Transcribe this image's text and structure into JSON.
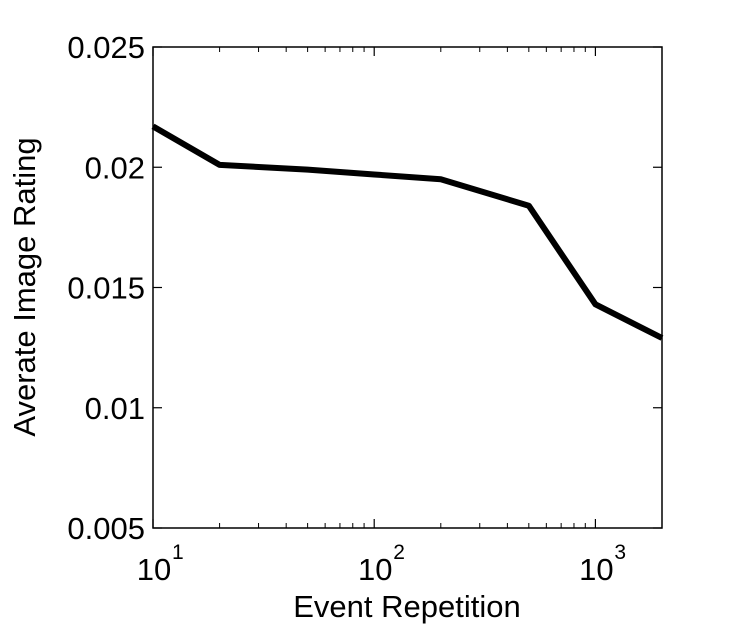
{
  "chart_data": {
    "type": "line",
    "title": "",
    "xlabel": "Event Repetition",
    "ylabel": "Averate Image Rating",
    "x_scale": "log",
    "xlim": [
      10,
      2000
    ],
    "ylim": [
      0.005,
      0.025
    ],
    "grid": false,
    "y_ticks": [
      {
        "value": 0.005,
        "label": "0.005"
      },
      {
        "value": 0.01,
        "label": "0.01"
      },
      {
        "value": 0.015,
        "label": "0.015"
      },
      {
        "value": 0.02,
        "label": "0.02"
      },
      {
        "value": 0.025,
        "label": "0.025"
      }
    ],
    "x_ticks": [
      {
        "value": 10,
        "base": "10",
        "exp": "1"
      },
      {
        "value": 100,
        "base": "10",
        "exp": "2"
      },
      {
        "value": 1000,
        "base": "10",
        "exp": "3"
      }
    ],
    "series": [
      {
        "color": "#000000",
        "x": [
          10,
          20,
          50,
          100,
          200,
          500,
          1000,
          2000
        ],
        "y": [
          0.0217,
          0.0201,
          0.0199,
          0.0197,
          0.0195,
          0.0184,
          0.0143,
          0.0129
        ]
      }
    ]
  }
}
